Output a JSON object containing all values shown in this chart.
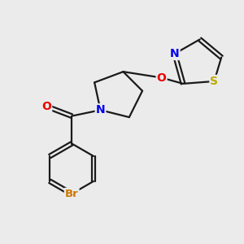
{
  "background_color": "#ebebeb",
  "bond_color": "#1a1a1a",
  "atom_colors": {
    "N": "#0000ee",
    "O": "#ee0000",
    "S": "#bbaa00",
    "Br": "#cc7700",
    "C": "#1a1a1a"
  },
  "figsize": [
    3.0,
    3.0
  ],
  "dpi": 100
}
